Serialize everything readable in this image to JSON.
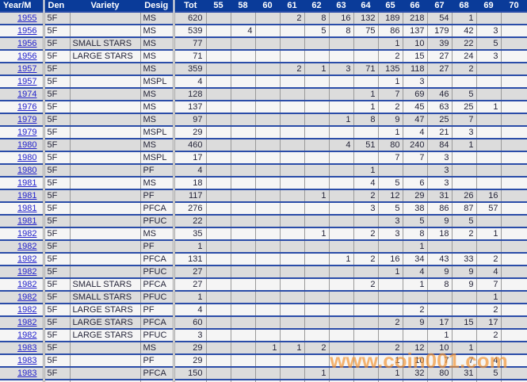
{
  "watermark": "www.coin001.com",
  "colors": {
    "header-bg": "#0a3b99",
    "row-line": "#2a4ca8",
    "grid-line": "#9a9a9a",
    "row-gray": "#dcdcdc",
    "row-light": "#f5f5f5",
    "text": "#26263a",
    "link": "#2222cc",
    "watermark": "rgba(243,146,45,0.68)"
  },
  "table": {
    "columns": [
      "Year/M",
      "Den",
      "Variety",
      "Desig",
      "Tot",
      "55",
      "58",
      "60",
      "61",
      "62",
      "63",
      "64",
      "65",
      "66",
      "67",
      "68",
      "69",
      "70"
    ],
    "year_columns": [
      "55",
      "58",
      "60",
      "61",
      "62",
      "63",
      "64",
      "65",
      "66",
      "67",
      "68",
      "69",
      "70"
    ],
    "rows": [
      {
        "year": "1955",
        "den": "5F",
        "variety": "",
        "desig": "MS",
        "tot": "620",
        "values": [
          "",
          "",
          "",
          "2",
          "8",
          "16",
          "132",
          "189",
          "218",
          "54",
          "1",
          "",
          ""
        ]
      },
      {
        "year": "1956",
        "den": "5F",
        "variety": "",
        "desig": "MS",
        "tot": "539",
        "values": [
          "",
          "4",
          "",
          "",
          "5",
          "8",
          "75",
          "86",
          "137",
          "179",
          "42",
          "3",
          ""
        ]
      },
      {
        "year": "1956",
        "den": "5F",
        "variety": "SMALL STARS",
        "desig": "MS",
        "tot": "77",
        "values": [
          "",
          "",
          "",
          "",
          "",
          "",
          "",
          "1",
          "10",
          "39",
          "22",
          "5",
          ""
        ]
      },
      {
        "year": "1956",
        "den": "5F",
        "variety": "LARGE STARS",
        "desig": "MS",
        "tot": "71",
        "values": [
          "",
          "",
          "",
          "",
          "",
          "",
          "",
          "2",
          "15",
          "27",
          "24",
          "3",
          ""
        ]
      },
      {
        "year": "1957",
        "den": "5F",
        "variety": "",
        "desig": "MS",
        "tot": "359",
        "values": [
          "",
          "",
          "",
          "2",
          "1",
          "3",
          "71",
          "135",
          "118",
          "27",
          "2",
          "",
          ""
        ]
      },
      {
        "year": "1957",
        "den": "5F",
        "variety": "",
        "desig": "MSPL",
        "tot": "4",
        "values": [
          "",
          "",
          "",
          "",
          "",
          "",
          "",
          "1",
          "3",
          "",
          "",
          "",
          ""
        ]
      },
      {
        "year": "1974",
        "den": "5F",
        "variety": "",
        "desig": "MS",
        "tot": "128",
        "values": [
          "",
          "",
          "",
          "",
          "",
          "",
          "1",
          "7",
          "69",
          "46",
          "5",
          "",
          ""
        ]
      },
      {
        "year": "1976",
        "den": "5F",
        "variety": "",
        "desig": "MS",
        "tot": "137",
        "values": [
          "",
          "",
          "",
          "",
          "",
          "",
          "1",
          "2",
          "45",
          "63",
          "25",
          "1",
          ""
        ]
      },
      {
        "year": "1979",
        "den": "5F",
        "variety": "",
        "desig": "MS",
        "tot": "97",
        "values": [
          "",
          "",
          "",
          "",
          "",
          "1",
          "8",
          "9",
          "47",
          "25",
          "7",
          "",
          ""
        ]
      },
      {
        "year": "1979",
        "den": "5F",
        "variety": "",
        "desig": "MSPL",
        "tot": "29",
        "values": [
          "",
          "",
          "",
          "",
          "",
          "",
          "",
          "1",
          "4",
          "21",
          "3",
          "",
          ""
        ]
      },
      {
        "year": "1980",
        "den": "5F",
        "variety": "",
        "desig": "MS",
        "tot": "460",
        "values": [
          "",
          "",
          "",
          "",
          "",
          "4",
          "51",
          "80",
          "240",
          "84",
          "1",
          "",
          ""
        ]
      },
      {
        "year": "1980",
        "den": "5F",
        "variety": "",
        "desig": "MSPL",
        "tot": "17",
        "values": [
          "",
          "",
          "",
          "",
          "",
          "",
          "",
          "7",
          "7",
          "3",
          "",
          "",
          ""
        ]
      },
      {
        "year": "1980",
        "den": "5F",
        "variety": "",
        "desig": "PF",
        "tot": "4",
        "values": [
          "",
          "",
          "",
          "",
          "",
          "",
          "1",
          "",
          "",
          "3",
          "",
          "",
          ""
        ]
      },
      {
        "year": "1981",
        "den": "5F",
        "variety": "",
        "desig": "MS",
        "tot": "18",
        "values": [
          "",
          "",
          "",
          "",
          "",
          "",
          "4",
          "5",
          "6",
          "3",
          "",
          "",
          ""
        ]
      },
      {
        "year": "1981",
        "den": "5F",
        "variety": "",
        "desig": "PF",
        "tot": "117",
        "values": [
          "",
          "",
          "",
          "",
          "1",
          "",
          "2",
          "12",
          "29",
          "31",
          "26",
          "16",
          ""
        ]
      },
      {
        "year": "1981",
        "den": "5F",
        "variety": "",
        "desig": "PFCA",
        "tot": "276",
        "values": [
          "",
          "",
          "",
          "",
          "",
          "",
          "3",
          "5",
          "38",
          "86",
          "87",
          "57",
          ""
        ]
      },
      {
        "year": "1981",
        "den": "5F",
        "variety": "",
        "desig": "PFUC",
        "tot": "22",
        "values": [
          "",
          "",
          "",
          "",
          "",
          "",
          "",
          "3",
          "5",
          "9",
          "5",
          "",
          ""
        ]
      },
      {
        "year": "1982",
        "den": "5F",
        "variety": "",
        "desig": "MS",
        "tot": "35",
        "values": [
          "",
          "",
          "",
          "",
          "1",
          "",
          "2",
          "3",
          "8",
          "18",
          "2",
          "1",
          ""
        ]
      },
      {
        "year": "1982",
        "den": "5F",
        "variety": "",
        "desig": "PF",
        "tot": "1",
        "values": [
          "",
          "",
          "",
          "",
          "",
          "",
          "",
          "",
          "1",
          "",
          "",
          "",
          ""
        ]
      },
      {
        "year": "1982",
        "den": "5F",
        "variety": "",
        "desig": "PFCA",
        "tot": "131",
        "values": [
          "",
          "",
          "",
          "",
          "",
          "1",
          "2",
          "16",
          "34",
          "43",
          "33",
          "2",
          ""
        ]
      },
      {
        "year": "1982",
        "den": "5F",
        "variety": "",
        "desig": "PFUC",
        "tot": "27",
        "values": [
          "",
          "",
          "",
          "",
          "",
          "",
          "",
          "1",
          "4",
          "9",
          "9",
          "4",
          ""
        ]
      },
      {
        "year": "1982",
        "den": "5F",
        "variety": "SMALL STARS",
        "desig": "PFCA",
        "tot": "27",
        "values": [
          "",
          "",
          "",
          "",
          "",
          "",
          "2",
          "",
          "1",
          "8",
          "9",
          "7",
          ""
        ]
      },
      {
        "year": "1982",
        "den": "5F",
        "variety": "SMALL STARS",
        "desig": "PFUC",
        "tot": "1",
        "values": [
          "",
          "",
          "",
          "",
          "",
          "",
          "",
          "",
          "",
          "",
          "",
          "1",
          ""
        ]
      },
      {
        "year": "1982",
        "den": "5F",
        "variety": "LARGE STARS",
        "desig": "PF",
        "tot": "4",
        "values": [
          "",
          "",
          "",
          "",
          "",
          "",
          "",
          "",
          "2",
          "",
          "",
          "2",
          ""
        ]
      },
      {
        "year": "1982",
        "den": "5F",
        "variety": "LARGE STARS",
        "desig": "PFCA",
        "tot": "60",
        "values": [
          "",
          "",
          "",
          "",
          "",
          "",
          "",
          "2",
          "9",
          "17",
          "15",
          "17",
          ""
        ]
      },
      {
        "year": "1982",
        "den": "5F",
        "variety": "LARGE STARS",
        "desig": "PFUC",
        "tot": "3",
        "values": [
          "",
          "",
          "",
          "",
          "",
          "",
          "",
          "",
          "",
          "1",
          "",
          "2",
          ""
        ]
      },
      {
        "year": "1983",
        "den": "5F",
        "variety": "",
        "desig": "MS",
        "tot": "29",
        "values": [
          "",
          "",
          "1",
          "1",
          "2",
          "",
          "",
          "2",
          "12",
          "10",
          "1",
          "",
          ""
        ]
      },
      {
        "year": "1983",
        "den": "5F",
        "variety": "",
        "desig": "PF",
        "tot": "29",
        "values": [
          "",
          "",
          "",
          "",
          "",
          "",
          "",
          "1",
          "10",
          "7",
          "7",
          "4",
          ""
        ]
      },
      {
        "year": "1983",
        "den": "5F",
        "variety": "",
        "desig": "PFCA",
        "tot": "150",
        "values": [
          "",
          "",
          "",
          "",
          "1",
          "",
          "",
          "1",
          "32",
          "80",
          "31",
          "5",
          ""
        ]
      }
    ]
  }
}
